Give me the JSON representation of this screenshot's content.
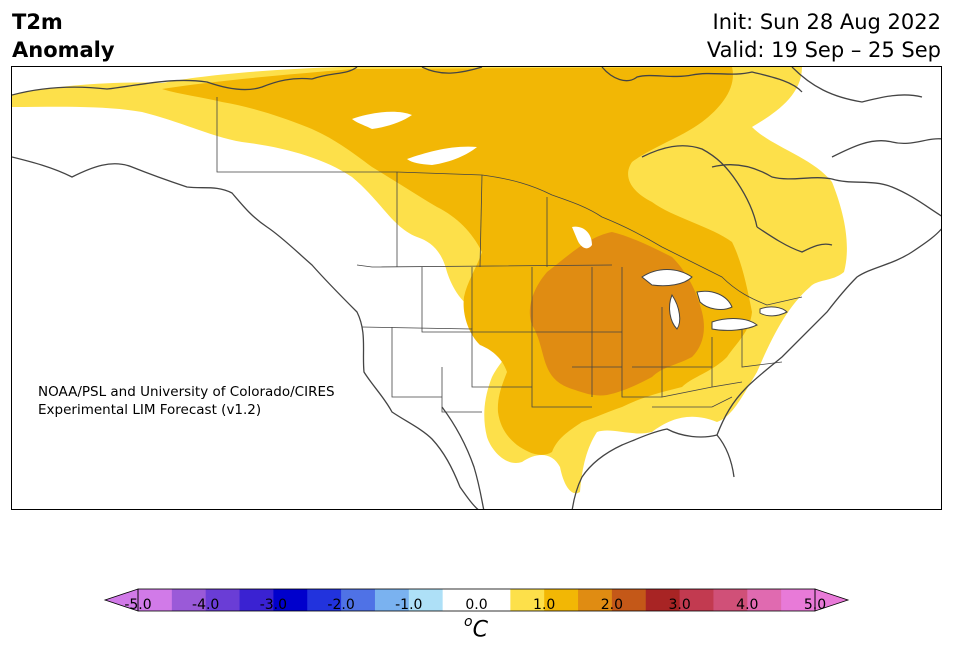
{
  "title": {
    "variable_line1": "T2m",
    "variable_line2": "Anomaly",
    "init": "Init: Sun 28 Aug 2022",
    "valid": "Valid: 19 Sep – 25 Sep"
  },
  "credit": {
    "line1": "NOAA/PSL and University of Colorado/CIRES",
    "line2": "Experimental LIM Forecast (v1.2)"
  },
  "colorbar": {
    "units_symbol": "o",
    "units_letter": "C",
    "ticks": [
      "-5.0",
      "-4.0",
      "-3.0",
      "-2.0",
      "-1.0",
      "0.0",
      "1.0",
      "2.0",
      "3.0",
      "4.0",
      "5.0"
    ],
    "colors": [
      "#d17ae8",
      "#9a5ad8",
      "#6a3dd6",
      "#3a22d2",
      "#0000cc",
      "#2233dd",
      "#4f72e6",
      "#7ab2f0",
      "#aee0f7",
      "#ffffff",
      "#ffffff",
      "#fde04a",
      "#f2b705",
      "#e08c12",
      "#c45818",
      "#a82424",
      "#c23a50",
      "#d05078",
      "#e06ab0",
      "#e87ad8"
    ],
    "extend_min_color": "#d17ae8",
    "extend_max_color": "#e87ad8"
  },
  "map": {
    "region": "North America",
    "anomaly_colors": {
      "plus_0_5_to_1": "#fde04a",
      "plus_1_to_1_5": "#f2b705",
      "plus_1_5_to_2": "#e08c12"
    }
  }
}
